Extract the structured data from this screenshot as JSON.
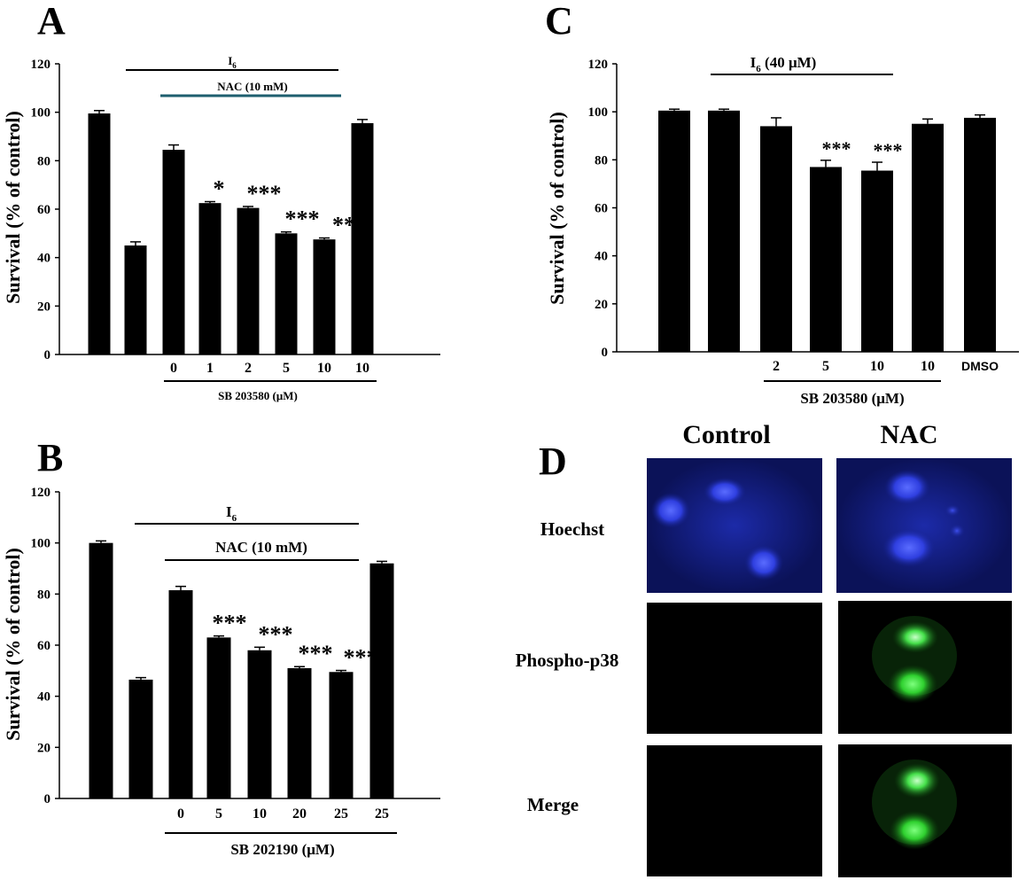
{
  "chart_data": [
    {
      "panel": "A",
      "type": "bar",
      "ylabel": "Survival (% of control)",
      "ylim": [
        0,
        120
      ],
      "yticks": [
        0,
        20,
        40,
        60,
        80,
        100,
        120
      ],
      "values": [
        99.5,
        45,
        84.5,
        62.5,
        60.5,
        50,
        47.5,
        95.5
      ],
      "errors": [
        1.2,
        1.5,
        2,
        0.6,
        0.6,
        0.6,
        0.6,
        1.5
      ],
      "x_tick_labels": [
        "",
        "",
        "0",
        "1",
        "2",
        "5",
        "10",
        "10"
      ],
      "significance": [
        "",
        "",
        "",
        "*",
        "***",
        "***",
        "**",
        ""
      ],
      "brackets": {
        "top": "I6",
        "middle": "NAC (10 mM)",
        "bottom": "SB 203580 (μM)"
      }
    },
    {
      "panel": "B",
      "type": "bar",
      "ylabel": "Survival (% of control)",
      "ylim": [
        0,
        120
      ],
      "yticks": [
        0,
        20,
        40,
        60,
        80,
        100,
        120
      ],
      "values": [
        100,
        46.5,
        81.5,
        63,
        58,
        51,
        49.5,
        92
      ],
      "errors": [
        0.8,
        0.8,
        1.5,
        0.6,
        1.2,
        0.6,
        0.6,
        0.8
      ],
      "x_tick_labels": [
        "",
        "",
        "0",
        "5",
        "10",
        "20",
        "25",
        "25"
      ],
      "significance": [
        "",
        "",
        "",
        "***",
        "***",
        "***",
        "***",
        ""
      ],
      "brackets": {
        "top": "I6",
        "middle": "NAC (10 mM)",
        "bottom": "SB 202190 (μM)"
      }
    },
    {
      "panel": "C",
      "type": "bar",
      "ylabel": "Survival (% of control)",
      "ylim": [
        0,
        120
      ],
      "yticks": [
        0,
        20,
        40,
        60,
        80,
        100,
        120
      ],
      "values": [
        100.5,
        100.5,
        94,
        77,
        75.5,
        95,
        97.5
      ],
      "errors": [
        0.6,
        0.6,
        3.5,
        2.8,
        3.5,
        2,
        1.2
      ],
      "x_tick_labels": [
        "",
        "",
        "2",
        "5",
        "10",
        "10",
        "DMSO"
      ],
      "significance": [
        "",
        "",
        "",
        "***",
        "***",
        "",
        ""
      ],
      "brackets": {
        "top": "I6 (40 μM)",
        "bottom": "SB 203580 (μM)"
      }
    }
  ],
  "panel_d": {
    "label": "D",
    "columns": [
      "Control",
      "NAC"
    ],
    "rows": [
      "Hoechst",
      "Phospho-p38",
      "Merge"
    ]
  }
}
